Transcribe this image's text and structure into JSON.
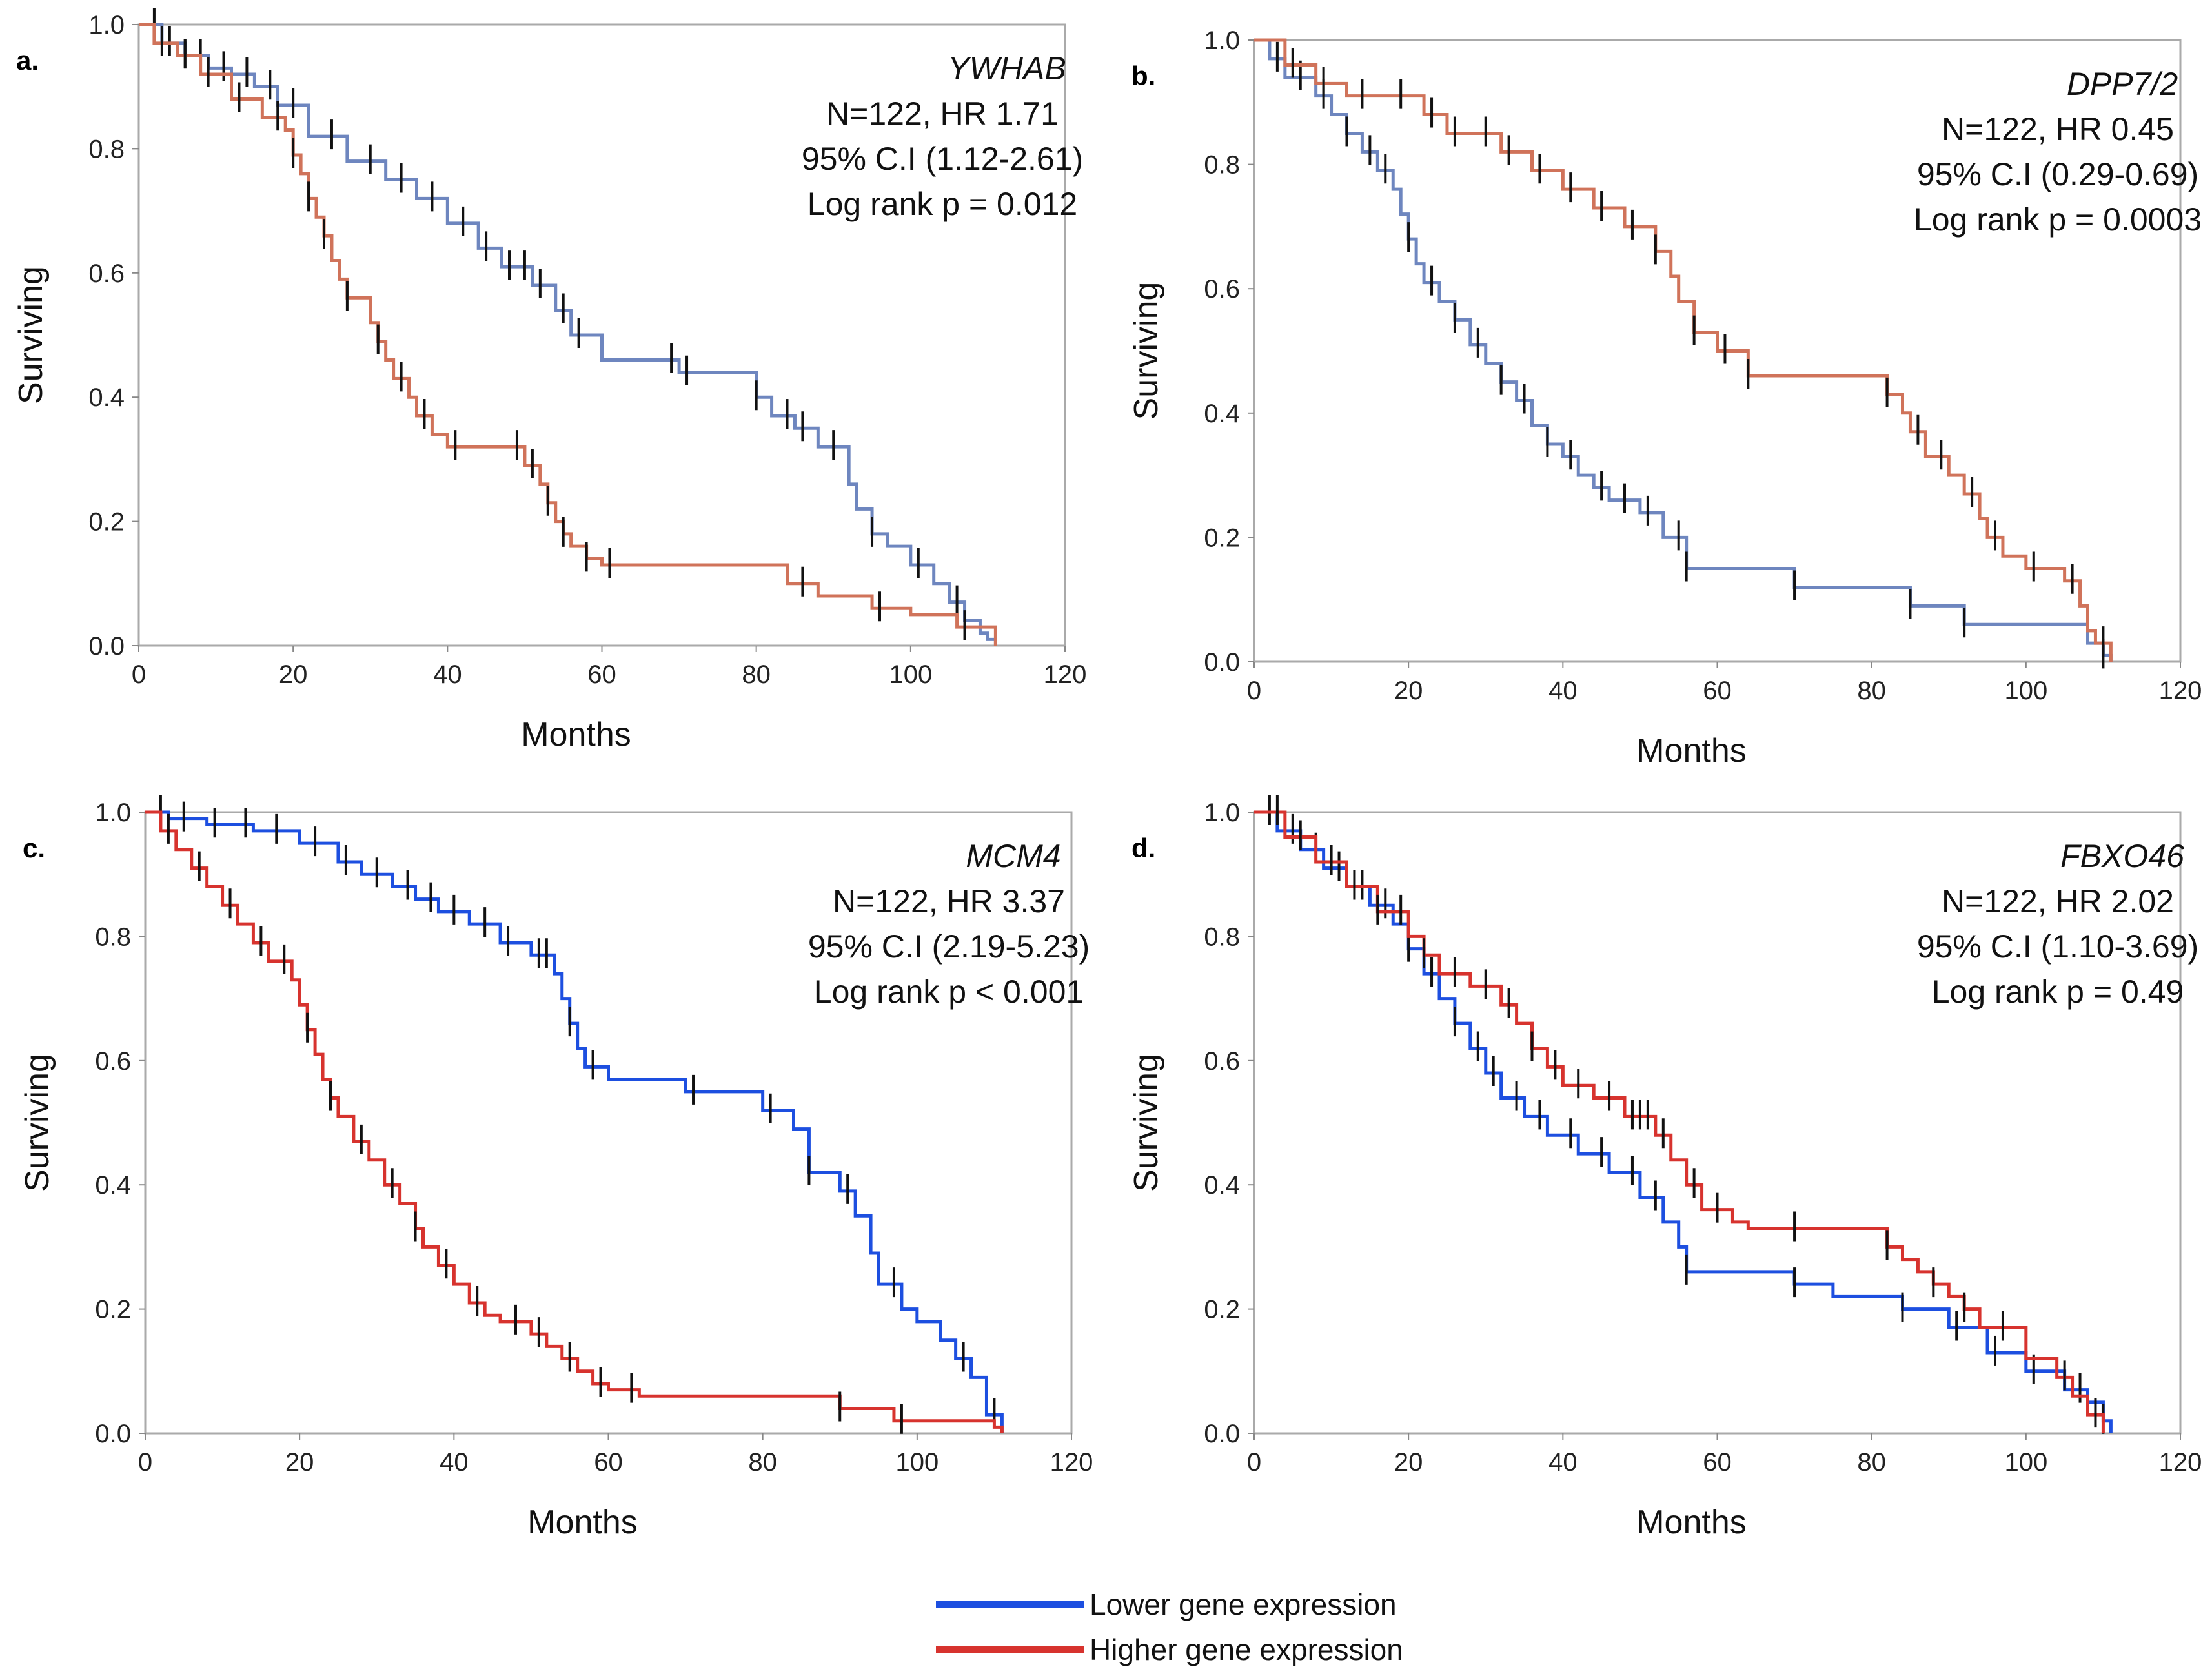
{
  "chart_data": [
    {
      "type": "line",
      "panel": "a.",
      "gene": "YWHAB",
      "stats": [
        "N=122, HR 1.71",
        "95% C.I (1.12-2.61)",
        "Log rank p = 0.012"
      ],
      "xlabel": "Months",
      "ylabel": "Surviving",
      "xlim": [
        0,
        120
      ],
      "ylim": [
        0,
        1
      ],
      "xticks": [
        "0",
        "20",
        "40",
        "60",
        "80",
        "100",
        "120"
      ],
      "yticks": [
        "0.0",
        "0.2",
        "0.4",
        "0.6",
        "0.8",
        "1.0"
      ],
      "series": [
        {
          "name": "Lower gene expression",
          "color": "#6e86bf",
          "x": [
            0,
            3,
            6,
            9,
            12,
            15,
            18,
            22,
            27,
            32,
            36,
            40,
            44,
            47,
            51,
            54,
            56,
            60,
            70,
            80,
            82,
            85,
            88,
            92,
            93,
            95,
            97,
            100,
            103,
            105,
            107,
            109,
            110,
            111
          ],
          "y": [
            1.0,
            0.97,
            0.95,
            0.93,
            0.92,
            0.9,
            0.87,
            0.82,
            0.78,
            0.75,
            0.72,
            0.68,
            0.64,
            0.61,
            0.58,
            0.54,
            0.5,
            0.46,
            0.44,
            0.4,
            0.37,
            0.35,
            0.32,
            0.26,
            0.22,
            0.18,
            0.16,
            0.13,
            0.1,
            0.07,
            0.04,
            0.02,
            0.01,
            0.0
          ],
          "censor": [
            2,
            4,
            6,
            8,
            11,
            14,
            17,
            20,
            25,
            30,
            34,
            38,
            42,
            45,
            48,
            50,
            52,
            55,
            57,
            69,
            71,
            80,
            84,
            86,
            90,
            95,
            101,
            106
          ]
        },
        {
          "name": "Higher gene expression",
          "color": "#d0735a",
          "x": [
            0,
            2,
            5,
            8,
            12,
            16,
            19,
            20,
            21,
            22,
            23,
            24,
            25,
            26,
            27,
            30,
            31,
            32,
            33,
            35,
            36,
            38,
            40,
            50,
            52,
            53,
            54,
            55,
            56,
            58,
            60,
            64,
            84,
            88,
            95,
            100,
            106,
            111
          ],
          "y": [
            1.0,
            0.97,
            0.95,
            0.92,
            0.88,
            0.85,
            0.83,
            0.79,
            0.76,
            0.72,
            0.69,
            0.66,
            0.62,
            0.59,
            0.56,
            0.52,
            0.49,
            0.46,
            0.43,
            0.4,
            0.37,
            0.34,
            0.32,
            0.29,
            0.26,
            0.23,
            0.2,
            0.18,
            0.16,
            0.14,
            0.13,
            0.13,
            0.1,
            0.08,
            0.06,
            0.05,
            0.03,
            0.0
          ],
          "censor": [
            3,
            6,
            9,
            13,
            18,
            20,
            22,
            24,
            27,
            31,
            34,
            37,
            41,
            49,
            51,
            53,
            55,
            58,
            61,
            86,
            96,
            107
          ]
        }
      ]
    },
    {
      "type": "line",
      "panel": "b.",
      "gene": "DPP7/2",
      "stats": [
        "N=122, HR 0.45",
        "95% C.I (0.29-0.69)",
        "Log rank p = 0.0003"
      ],
      "xlabel": "Months",
      "ylabel": "Surviving",
      "xlim": [
        0,
        120
      ],
      "ylim": [
        0,
        1
      ],
      "xticks": [
        "0",
        "20",
        "40",
        "60",
        "80",
        "100",
        "120"
      ],
      "yticks": [
        "0.0",
        "0.2",
        "0.4",
        "0.6",
        "0.8",
        "1.0"
      ],
      "series": [
        {
          "name": "Lower gene expression",
          "color": "#6e86bf",
          "x": [
            0,
            2,
            4,
            8,
            10,
            12,
            14,
            16,
            18,
            19,
            20,
            21,
            22,
            24,
            26,
            28,
            30,
            32,
            34,
            36,
            38,
            40,
            42,
            44,
            46,
            50,
            53,
            56,
            70,
            85,
            92,
            108,
            110,
            111
          ],
          "y": [
            1.0,
            0.97,
            0.94,
            0.91,
            0.88,
            0.85,
            0.82,
            0.79,
            0.76,
            0.72,
            0.68,
            0.64,
            0.61,
            0.58,
            0.55,
            0.51,
            0.48,
            0.45,
            0.42,
            0.38,
            0.35,
            0.33,
            0.3,
            0.28,
            0.26,
            0.24,
            0.2,
            0.15,
            0.12,
            0.09,
            0.06,
            0.03,
            0.01,
            0.0
          ],
          "censor": [
            3,
            6,
            9,
            12,
            15,
            17,
            20,
            23,
            26,
            29,
            32,
            35,
            38,
            41,
            45,
            48,
            51,
            55,
            56,
            70,
            85,
            92,
            110
          ]
        },
        {
          "name": "Higher gene expression",
          "color": "#d0735a",
          "x": [
            0,
            4,
            8,
            12,
            16,
            22,
            25,
            32,
            36,
            40,
            44,
            48,
            52,
            54,
            55,
            57,
            60,
            64,
            80,
            82,
            84,
            85,
            87,
            90,
            92,
            94,
            95,
            97,
            100,
            105,
            107,
            108,
            109,
            111
          ],
          "y": [
            1.0,
            0.96,
            0.93,
            0.91,
            0.91,
            0.88,
            0.85,
            0.82,
            0.79,
            0.76,
            0.73,
            0.7,
            0.66,
            0.62,
            0.58,
            0.53,
            0.5,
            0.46,
            0.46,
            0.43,
            0.4,
            0.37,
            0.33,
            0.3,
            0.27,
            0.23,
            0.2,
            0.17,
            0.15,
            0.13,
            0.09,
            0.05,
            0.03,
            0.0
          ],
          "censor": [
            5,
            9,
            14,
            19,
            23,
            26,
            30,
            33,
            37,
            41,
            45,
            49,
            52,
            57,
            61,
            64,
            82,
            86,
            89,
            93,
            96,
            101,
            106,
            110
          ]
        }
      ]
    },
    {
      "type": "line",
      "panel": "c.",
      "gene": "MCM4",
      "stats": [
        "N=122, HR 3.37",
        "95% C.I (2.19-5.23)",
        "Log rank p < 0.001"
      ],
      "xlabel": "Months",
      "ylabel": "Surviving",
      "xlim": [
        0,
        120
      ],
      "ylim": [
        0,
        1
      ],
      "xticks": [
        "0",
        "20",
        "40",
        "60",
        "80",
        "100",
        "120"
      ],
      "yticks": [
        "0.0",
        "0.2",
        "0.4",
        "0.6",
        "0.8",
        "1.0"
      ],
      "series": [
        {
          "name": "Lower gene expression",
          "color": "#1d4fe0",
          "x": [
            0,
            3,
            8,
            14,
            20,
            25,
            28,
            32,
            35,
            38,
            42,
            46,
            50,
            53,
            54,
            55,
            56,
            57,
            60,
            70,
            80,
            84,
            86,
            90,
            92,
            94,
            95,
            98,
            100,
            103,
            105,
            107,
            109,
            111
          ],
          "y": [
            1.0,
            0.99,
            0.98,
            0.97,
            0.95,
            0.92,
            0.9,
            0.88,
            0.86,
            0.84,
            0.82,
            0.79,
            0.77,
            0.74,
            0.7,
            0.66,
            0.62,
            0.59,
            0.57,
            0.55,
            0.52,
            0.49,
            0.42,
            0.39,
            0.35,
            0.29,
            0.24,
            0.2,
            0.18,
            0.15,
            0.12,
            0.09,
            0.03,
            0.0
          ],
          "censor": [
            2,
            5,
            9,
            13,
            17,
            22,
            26,
            30,
            34,
            37,
            40,
            44,
            47,
            51,
            52,
            55,
            58,
            71,
            81,
            86,
            91,
            97,
            106,
            110
          ]
        },
        {
          "name": "Higher gene expression",
          "color": "#d7332e",
          "x": [
            0,
            2,
            4,
            6,
            8,
            10,
            12,
            14,
            16,
            19,
            20,
            21,
            22,
            23,
            24,
            25,
            27,
            29,
            31,
            33,
            35,
            36,
            38,
            40,
            42,
            44,
            46,
            50,
            52,
            54,
            56,
            58,
            60,
            64,
            90,
            97,
            110,
            111
          ],
          "y": [
            1.0,
            0.97,
            0.94,
            0.91,
            0.88,
            0.85,
            0.82,
            0.79,
            0.76,
            0.73,
            0.69,
            0.65,
            0.61,
            0.57,
            0.54,
            0.51,
            0.47,
            0.44,
            0.4,
            0.37,
            0.33,
            0.3,
            0.27,
            0.24,
            0.21,
            0.19,
            0.18,
            0.16,
            0.14,
            0.12,
            0.1,
            0.08,
            0.07,
            0.06,
            0.04,
            0.02,
            0.01,
            0.0
          ],
          "censor": [
            3,
            7,
            11,
            15,
            18,
            21,
            24,
            28,
            32,
            35,
            39,
            43,
            48,
            51,
            55,
            59,
            63,
            90,
            98
          ]
        }
      ]
    },
    {
      "type": "line",
      "panel": "d.",
      "gene": "FBXO46",
      "stats": [
        "N=122, HR 2.02",
        "95% C.I (1.10-3.69)",
        "Log rank p = 0.49"
      ],
      "xlabel": "Months",
      "ylabel": "Surviving",
      "xlim": [
        0,
        120
      ],
      "ylim": [
        0,
        1
      ],
      "xticks": [
        "0",
        "20",
        "40",
        "60",
        "80",
        "100",
        "120"
      ],
      "yticks": [
        "0.0",
        "0.2",
        "0.4",
        "0.6",
        "0.8",
        "1.0"
      ],
      "series": [
        {
          "name": "Lower gene expression",
          "color": "#1d4fe0",
          "x": [
            0,
            3,
            6,
            9,
            12,
            15,
            18,
            20,
            22,
            24,
            26,
            28,
            30,
            32,
            35,
            38,
            42,
            46,
            50,
            53,
            55,
            56,
            62,
            70,
            75,
            84,
            90,
            95,
            100,
            105,
            108,
            110,
            111
          ],
          "y": [
            1.0,
            0.97,
            0.94,
            0.91,
            0.88,
            0.85,
            0.82,
            0.78,
            0.74,
            0.7,
            0.66,
            0.62,
            0.58,
            0.54,
            0.51,
            0.48,
            0.45,
            0.42,
            0.38,
            0.34,
            0.3,
            0.26,
            0.26,
            0.24,
            0.22,
            0.2,
            0.17,
            0.13,
            0.1,
            0.07,
            0.05,
            0.02,
            0.0
          ],
          "censor": [
            2,
            5,
            8,
            11,
            14,
            17,
            20,
            23,
            26,
            29,
            31,
            34,
            37,
            41,
            45,
            49,
            52,
            56,
            70,
            84,
            91,
            96,
            101,
            107,
            110
          ]
        },
        {
          "name": "Higher gene expression",
          "color": "#d7332e",
          "x": [
            0,
            4,
            8,
            12,
            16,
            20,
            22,
            24,
            28,
            32,
            34,
            36,
            38,
            40,
            44,
            48,
            52,
            54,
            56,
            58,
            62,
            64,
            80,
            82,
            84,
            86,
            88,
            90,
            92,
            94,
            100,
            104,
            106,
            108,
            110
          ],
          "y": [
            1.0,
            0.96,
            0.92,
            0.88,
            0.84,
            0.8,
            0.77,
            0.74,
            0.72,
            0.69,
            0.66,
            0.62,
            0.59,
            0.56,
            0.54,
            0.51,
            0.48,
            0.44,
            0.4,
            0.36,
            0.34,
            0.33,
            0.33,
            0.3,
            0.28,
            0.26,
            0.24,
            0.22,
            0.2,
            0.17,
            0.12,
            0.09,
            0.06,
            0.03,
            0.0
          ],
          "censor": [
            3,
            6,
            10,
            13,
            16,
            19,
            22,
            26,
            30,
            33,
            36,
            39,
            42,
            46,
            49,
            50,
            51,
            53,
            57,
            60,
            70,
            82,
            88,
            92,
            97,
            105,
            109
          ]
        }
      ]
    }
  ],
  "legend": {
    "items": [
      {
        "label": "Lower gene expression",
        "color": "#1d4fe0"
      },
      {
        "label": "Higher gene expression",
        "color": "#d7332e"
      }
    ]
  }
}
